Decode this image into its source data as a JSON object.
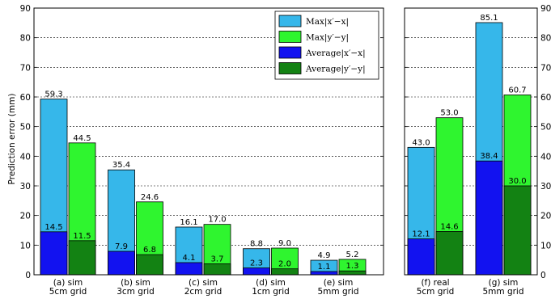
{
  "chart_data": {
    "type": "bar",
    "ylabel": "Prediction error (mm)",
    "ylim": [
      0,
      90
    ],
    "yticks": [
      0,
      10,
      20,
      30,
      40,
      50,
      60,
      70,
      80,
      90
    ],
    "grid": "y-dashed",
    "legend_placement": "top-right of left panel",
    "colors": {
      "max_x": "#36b7ea",
      "max_y": "#2ff52f",
      "avg_x": "#1212f0",
      "avg_y": "#138213"
    },
    "legend": [
      {
        "key": "max_x",
        "label": "Max|x′−x|"
      },
      {
        "key": "max_y",
        "label": "Max|y′−y|"
      },
      {
        "key": "avg_x",
        "label": "Average|x′−x|"
      },
      {
        "key": "avg_y",
        "label": "Average|y′−y|"
      }
    ],
    "panels": [
      {
        "categories": [
          [
            "(a) sim",
            "5cm grid"
          ],
          [
            "(b) sim",
            "3cm grid"
          ],
          [
            "(c) sim",
            "2cm grid"
          ],
          [
            "(d) sim",
            "1cm grid"
          ],
          [
            "(e) sim",
            "5mm grid"
          ]
        ],
        "max_x": [
          59.3,
          35.4,
          16.1,
          8.8,
          4.9
        ],
        "max_y": [
          44.5,
          24.6,
          17.0,
          9.0,
          5.2
        ],
        "avg_x": [
          14.5,
          7.9,
          4.1,
          2.3,
          1.1
        ],
        "avg_y": [
          11.5,
          6.8,
          3.7,
          2.0,
          1.3
        ]
      },
      {
        "categories": [
          [
            "(f) real",
            "5cm grid"
          ],
          [
            "(g) sim",
            "5mm grid"
          ]
        ],
        "max_x": [
          43.0,
          85.1
        ],
        "max_y": [
          53.0,
          60.7
        ],
        "avg_x": [
          12.1,
          38.4
        ],
        "avg_y": [
          14.6,
          30.0
        ]
      }
    ]
  }
}
